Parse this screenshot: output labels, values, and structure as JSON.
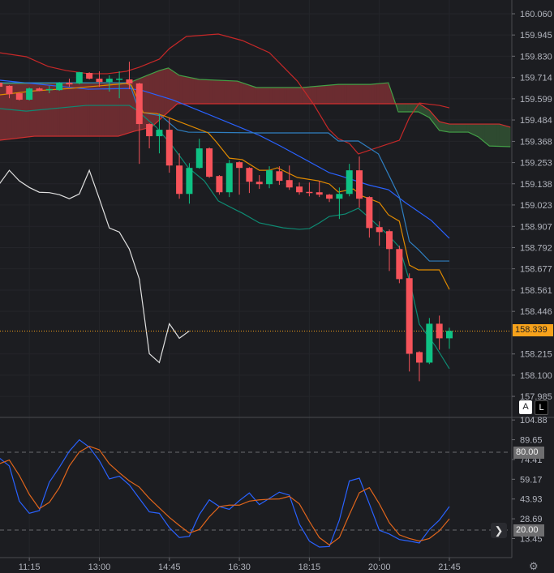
{
  "colors": {
    "background": "#1c1d21",
    "up": "#0ec284",
    "down": "#f6535a",
    "senkou_a": "#43a047",
    "senkou_b": "#d32f2f",
    "cloud_bear_fill": "#6b2c30",
    "cloud_bull_fill": "#2e4a30",
    "upper_red": "#c62828",
    "dark_blue": "#2962ff",
    "light_blue": "#2f7fc1",
    "orange": "#e08a00",
    "teal": "#0e8a73",
    "lagging": "#e0e0e0",
    "current_price": "#f7a21b",
    "stoch_k": "#2962ff",
    "stoch_d": "#e0651b"
  },
  "chart_data": [
    {
      "type": "candlestick",
      "y_axis_ticks": [
        "160.060",
        "159.945",
        "159.830",
        "159.714",
        "159.599",
        "159.484",
        "159.368",
        "159.253",
        "159.138",
        "159.023",
        "158.907",
        "158.792",
        "158.677",
        "158.561",
        "158.446",
        "158.215",
        "158.100",
        "157.985"
      ],
      "current_price": "158.339",
      "x_axis_ticks": [
        "11:15",
        "13:00",
        "14:45",
        "16:30",
        "18:15",
        "20:00",
        "21:45"
      ],
      "candles": [
        {
          "t": "10:30",
          "o": 159.686,
          "h": 159.69,
          "l": 159.66,
          "c": 159.664
        },
        {
          "t": "10:45",
          "o": 159.669,
          "h": 159.672,
          "l": 159.602,
          "c": 159.624
        },
        {
          "t": "11:00",
          "o": 159.629,
          "h": 159.635,
          "l": 159.59,
          "c": 159.594
        },
        {
          "t": "11:15",
          "o": 159.594,
          "h": 159.66,
          "l": 159.59,
          "c": 159.655
        },
        {
          "t": "11:30",
          "o": 159.655,
          "h": 159.66,
          "l": 159.64,
          "c": 159.642
        },
        {
          "t": "11:45",
          "o": 159.649,
          "h": 159.669,
          "l": 159.629,
          "c": 159.652
        },
        {
          "t": "12:00",
          "o": 159.646,
          "h": 159.69,
          "l": 159.642,
          "c": 159.686
        },
        {
          "t": "12:15",
          "o": 159.686,
          "h": 159.708,
          "l": 159.664,
          "c": 159.677
        },
        {
          "t": "12:30",
          "o": 159.682,
          "h": 159.745,
          "l": 159.677,
          "c": 159.743
        },
        {
          "t": "12:45",
          "o": 159.739,
          "h": 159.743,
          "l": 159.704,
          "c": 159.708
        },
        {
          "t": "13:00",
          "o": 159.708,
          "h": 159.748,
          "l": 159.664,
          "c": 159.69
        },
        {
          "t": "13:15",
          "o": 159.69,
          "h": 159.726,
          "l": 159.638,
          "c": 159.708
        },
        {
          "t": "13:30",
          "o": 159.706,
          "h": 159.748,
          "l": 159.602,
          "c": 159.708
        },
        {
          "t": "13:45",
          "o": 159.704,
          "h": 159.8,
          "l": 159.651,
          "c": 159.682
        },
        {
          "t": "14:00",
          "o": 159.682,
          "h": 159.686,
          "l": 159.246,
          "c": 159.462
        },
        {
          "t": "14:15",
          "o": 159.462,
          "h": 159.466,
          "l": 159.33,
          "c": 159.396
        },
        {
          "t": "14:30",
          "o": 159.396,
          "h": 159.519,
          "l": 159.303,
          "c": 159.431
        },
        {
          "t": "14:45",
          "o": 159.431,
          "h": 159.497,
          "l": 159.198,
          "c": 159.237
        },
        {
          "t": "15:00",
          "o": 159.237,
          "h": 159.303,
          "l": 159.057,
          "c": 159.083
        },
        {
          "t": "15:15",
          "o": 159.083,
          "h": 159.25,
          "l": 159.03,
          "c": 159.224
        },
        {
          "t": "15:30",
          "o": 159.224,
          "h": 159.382,
          "l": 159.22,
          "c": 159.33
        },
        {
          "t": "15:45",
          "o": 159.33,
          "h": 159.335,
          "l": 159.17,
          "c": 159.176
        },
        {
          "t": "16:00",
          "o": 159.18,
          "h": 159.185,
          "l": 159.079,
          "c": 159.092
        },
        {
          "t": "16:15",
          "o": 159.092,
          "h": 159.268,
          "l": 159.066,
          "c": 159.25
        },
        {
          "t": "16:30",
          "o": 159.255,
          "h": 159.26,
          "l": 159.079,
          "c": 159.224
        },
        {
          "t": "16:45",
          "o": 159.224,
          "h": 159.228,
          "l": 159.088,
          "c": 159.149
        },
        {
          "t": "17:00",
          "o": 159.149,
          "h": 159.185,
          "l": 159.11,
          "c": 159.136
        },
        {
          "t": "17:15",
          "o": 159.136,
          "h": 159.233,
          "l": 159.114,
          "c": 159.211
        },
        {
          "t": "17:30",
          "o": 159.206,
          "h": 159.233,
          "l": 159.132,
          "c": 159.154
        },
        {
          "t": "17:45",
          "o": 159.158,
          "h": 159.237,
          "l": 159.105,
          "c": 159.118
        },
        {
          "t": "18:00",
          "o": 159.123,
          "h": 159.145,
          "l": 159.079,
          "c": 159.092
        },
        {
          "t": "18:15",
          "o": 159.094,
          "h": 159.145,
          "l": 159.07,
          "c": 159.09
        },
        {
          "t": "18:30",
          "o": 159.092,
          "h": 159.154,
          "l": 159.066,
          "c": 159.079
        },
        {
          "t": "18:45",
          "o": 159.079,
          "h": 159.083,
          "l": 159.039,
          "c": 159.057
        },
        {
          "t": "19:00",
          "o": 159.057,
          "h": 159.118,
          "l": 158.947,
          "c": 159.083
        },
        {
          "t": "19:15",
          "o": 159.083,
          "h": 159.246,
          "l": 159.07,
          "c": 159.211
        },
        {
          "t": "19:30",
          "o": 159.211,
          "h": 159.286,
          "l": 159.008,
          "c": 159.057
        },
        {
          "t": "19:45",
          "o": 159.066,
          "h": 159.07,
          "l": 158.846,
          "c": 158.898
        },
        {
          "t": "20:00",
          "o": 158.903,
          "h": 158.934,
          "l": 158.802,
          "c": 158.876
        },
        {
          "t": "20:15",
          "o": 158.881,
          "h": 158.89,
          "l": 158.665,
          "c": 158.784
        },
        {
          "t": "20:30",
          "o": 158.784,
          "h": 158.802,
          "l": 158.599,
          "c": 158.621
        },
        {
          "t": "20:45",
          "o": 158.626,
          "h": 158.652,
          "l": 158.12,
          "c": 158.216
        },
        {
          "t": "21:00",
          "o": 158.225,
          "h": 158.23,
          "l": 158.067,
          "c": 158.168
        },
        {
          "t": "21:15",
          "o": 158.168,
          "h": 158.41,
          "l": 158.16,
          "c": 158.379
        },
        {
          "t": "21:30",
          "o": 158.379,
          "h": 158.423,
          "l": 158.238,
          "c": 158.3
        },
        {
          "t": "21:45",
          "o": 158.3,
          "h": 158.357,
          "l": 158.243,
          "c": 158.34
        }
      ],
      "overlays": {
        "senkou_a": [
          [
            1,
            159.682
          ],
          [
            14,
            159.686
          ],
          [
            15.8,
            159.726
          ],
          [
            17,
            159.752
          ],
          [
            17.9,
            159.766
          ],
          [
            19,
            159.726
          ],
          [
            21,
            159.704
          ],
          [
            24.8,
            159.695
          ],
          [
            26.7,
            159.66
          ],
          [
            31.3,
            159.66
          ],
          [
            34.9,
            159.677
          ],
          [
            38.1,
            159.677
          ],
          [
            39.9,
            159.686
          ],
          [
            40.9,
            159.528
          ],
          [
            42.9,
            159.528
          ],
          [
            44,
            159.497
          ],
          [
            45,
            159.427
          ],
          [
            46,
            159.418
          ],
          [
            47.9,
            159.418
          ],
          [
            48.9,
            159.392
          ],
          [
            50,
            159.343
          ],
          [
            52.1,
            159.339
          ]
        ],
        "senkou_b": [
          [
            1,
            159.374
          ],
          [
            4.5,
            159.396
          ],
          [
            12.9,
            159.396
          ],
          [
            14.5,
            159.423
          ],
          [
            16.2,
            159.445
          ],
          [
            18.8,
            159.572
          ],
          [
            43,
            159.572
          ],
          [
            44,
            159.537
          ],
          [
            45,
            159.475
          ],
          [
            46,
            159.462
          ],
          [
            51,
            159.462
          ],
          [
            52.1,
            159.445
          ]
        ],
        "upper_red": [
          [
            1,
            159.849
          ],
          [
            3.7,
            159.827
          ],
          [
            5.9,
            159.774
          ],
          [
            7.7,
            159.752
          ],
          [
            9.9,
            159.735
          ],
          [
            11.8,
            159.735
          ],
          [
            13.7,
            159.748
          ],
          [
            15,
            159.77
          ],
          [
            17,
            159.814
          ],
          [
            18,
            159.871
          ],
          [
            19.7,
            159.937
          ],
          [
            22.9,
            159.95
          ],
          [
            25.3,
            159.915
          ],
          [
            28,
            159.849
          ],
          [
            30.8,
            159.695
          ],
          [
            32.5,
            159.563
          ],
          [
            33.9,
            159.436
          ],
          [
            34.9,
            159.383
          ],
          [
            36,
            159.357
          ],
          [
            36.9,
            159.3
          ],
          [
            41,
            159.374
          ],
          [
            42,
            159.497
          ],
          [
            43,
            159.576
          ],
          [
            45,
            159.563
          ],
          [
            46,
            159.55
          ]
        ],
        "dark_blue": [
          [
            1,
            159.7
          ],
          [
            9.9,
            159.651
          ],
          [
            14,
            159.655
          ],
          [
            15.4,
            159.642
          ],
          [
            18.3,
            159.594
          ],
          [
            21.3,
            159.528
          ],
          [
            27,
            159.401
          ],
          [
            29.1,
            159.343
          ],
          [
            34,
            159.198
          ],
          [
            35.1,
            159.181
          ],
          [
            37.9,
            159.132
          ],
          [
            39.9,
            159.106
          ],
          [
            41.6,
            159.036
          ],
          [
            44.2,
            158.939
          ],
          [
            46,
            158.842
          ]
        ],
        "light_blue": [
          [
            1,
            159.686
          ],
          [
            14,
            159.686
          ],
          [
            15,
            159.528
          ],
          [
            17.2,
            159.506
          ],
          [
            18.8,
            159.431
          ],
          [
            19.9,
            159.418
          ],
          [
            27,
            159.414
          ],
          [
            33.9,
            159.414
          ],
          [
            34.9,
            159.37
          ],
          [
            36.9,
            159.37
          ],
          [
            38.9,
            159.3
          ],
          [
            40.1,
            159.168
          ],
          [
            41,
            159.067
          ],
          [
            42,
            158.825
          ],
          [
            42.9,
            158.781
          ],
          [
            44,
            158.719
          ],
          [
            46,
            158.719
          ]
        ],
        "orange": [
          [
            1,
            159.62
          ],
          [
            4.5,
            159.642
          ],
          [
            8.1,
            159.655
          ],
          [
            9.9,
            159.664
          ],
          [
            13.7,
            159.682
          ],
          [
            14.2,
            159.673
          ],
          [
            15.4,
            159.524
          ],
          [
            16.7,
            159.519
          ],
          [
            17.5,
            159.506
          ],
          [
            21.9,
            159.414
          ],
          [
            22.7,
            159.365
          ],
          [
            24,
            159.277
          ],
          [
            25.3,
            159.269
          ],
          [
            27,
            159.211
          ],
          [
            28,
            159.211
          ],
          [
            28.8,
            159.225
          ],
          [
            30.8,
            159.172
          ],
          [
            32.9,
            159.154
          ],
          [
            34,
            159.137
          ],
          [
            34.9,
            159.093
          ],
          [
            36.4,
            159.11
          ],
          [
            37.3,
            159.071
          ],
          [
            39,
            159.036
          ],
          [
            39.9,
            158.97
          ],
          [
            41,
            158.935
          ],
          [
            42,
            158.697
          ],
          [
            42.9,
            158.671
          ],
          [
            45,
            158.671
          ],
          [
            46,
            158.565
          ]
        ],
        "teal": [
          [
            1,
            159.546
          ],
          [
            3.7,
            159.532
          ],
          [
            9.7,
            159.563
          ],
          [
            14,
            159.563
          ],
          [
            15,
            159.528
          ],
          [
            15.4,
            159.506
          ],
          [
            16.7,
            159.445
          ],
          [
            18.3,
            159.343
          ],
          [
            19.9,
            159.225
          ],
          [
            21.5,
            159.154
          ],
          [
            22.9,
            159.045
          ],
          [
            24.8,
            158.992
          ],
          [
            25.3,
            158.979
          ],
          [
            27,
            158.926
          ],
          [
            29.4,
            158.899
          ],
          [
            31,
            158.891
          ],
          [
            32,
            158.895
          ],
          [
            33,
            158.926
          ],
          [
            34,
            158.961
          ],
          [
            35.6,
            158.974
          ],
          [
            36.9,
            159.005
          ],
          [
            38.1,
            158.948
          ],
          [
            39.9,
            158.86
          ],
          [
            41,
            158.794
          ],
          [
            42.1,
            158.596
          ],
          [
            43,
            158.376
          ],
          [
            44.6,
            158.258
          ],
          [
            46,
            158.135
          ]
        ]
      },
      "grid": true
    },
    {
      "type": "line",
      "y_axis_ticks": [
        "104.88",
        "89.65",
        "74.41",
        "59.17",
        "43.93",
        "28.69",
        "13.45"
      ],
      "levels": [
        "80.00",
        "20.00"
      ],
      "series": [
        {
          "values": [
            75.6,
            69.4,
            42.3,
            32.9,
            35.0,
            56.9,
            68.3,
            80.8,
            89.6,
            83.9,
            73.5,
            59.4,
            61.5,
            54.8,
            44.4,
            34.0,
            32.9,
            21.9,
            14.2,
            15.2,
            31.9,
            43.3,
            38.1,
            36.0,
            42.7,
            48.6,
            39.6,
            44.4,
            49.2,
            46.9,
            24.6,
            11.5,
            6.9,
            7.3,
            27.7,
            57.9,
            60.0,
            40.2,
            19.8,
            16.9,
            12.7,
            11.5,
            10.0,
            20.4,
            27.7,
            38.1
          ]
        },
        {
          "values": [
            71.1,
            74.0,
            62.1,
            47.5,
            36.5,
            41.3,
            52.7,
            69.4,
            80.2,
            84.6,
            81.9,
            71.1,
            64.2,
            57.9,
            53.1,
            44.4,
            37.1,
            29.8,
            23.5,
            17.7,
            20.4,
            30.2,
            38.1,
            39.2,
            39.2,
            42.3,
            43.3,
            43.8,
            44.0,
            46.0,
            40.2,
            26.7,
            14.2,
            8.5,
            14.2,
            31.9,
            48.8,
            52.7,
            40.2,
            25.6,
            16.3,
            13.5,
            11.5,
            13.5,
            19.4,
            28.6
          ]
        }
      ]
    }
  ],
  "controls": {
    "auto_label": "A",
    "log_label": "L",
    "scroll_right_icon": "chevron-right-icon",
    "settings_icon": "gear-icon"
  }
}
